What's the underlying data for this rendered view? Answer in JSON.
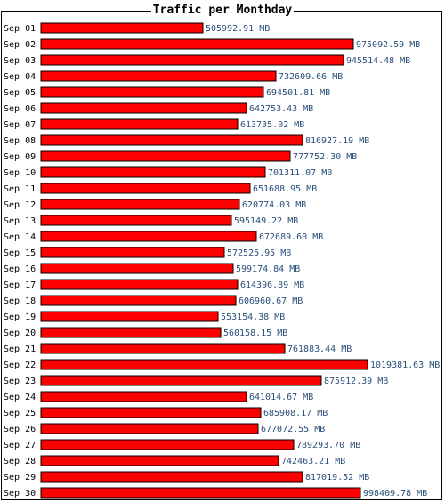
{
  "chart_data": {
    "type": "bar",
    "orientation": "horizontal",
    "title": "Traffic per Monthday",
    "unit": "MB",
    "bar_color": "#ff0000",
    "categories": [
      "Sep 01",
      "Sep 02",
      "Sep 03",
      "Sep 04",
      "Sep 05",
      "Sep 06",
      "Sep 07",
      "Sep 08",
      "Sep 09",
      "Sep 10",
      "Sep 11",
      "Sep 12",
      "Sep 13",
      "Sep 14",
      "Sep 15",
      "Sep 16",
      "Sep 17",
      "Sep 18",
      "Sep 19",
      "Sep 20",
      "Sep 21",
      "Sep 22",
      "Sep 23",
      "Sep 24",
      "Sep 25",
      "Sep 26",
      "Sep 27",
      "Sep 28",
      "Sep 29",
      "Sep 30"
    ],
    "values": [
      505992.91,
      975092.59,
      945514.48,
      732609.66,
      694501.81,
      642753.43,
      613735.02,
      816927.19,
      777752.3,
      701311.07,
      651688.95,
      620774.03,
      595149.22,
      672689.6,
      572525.95,
      599174.84,
      614396.89,
      606960.67,
      553154.38,
      560158.15,
      761883.44,
      1019381.63,
      875912.39,
      641014.67,
      685908.17,
      677072.55,
      789293.7,
      742463.21,
      817019.52,
      998409.78
    ],
    "value_labels": [
      "505992.91 MB",
      "975092.59 MB",
      "945514.48 MB",
      "732609.66 MB",
      "694501.81 MB",
      "642753.43 MB",
      "613735.02 MB",
      "816927.19 MB",
      "777752.30 MB",
      "701311.07 MB",
      "651688.95 MB",
      "620774.03 MB",
      "595149.22 MB",
      "672689.60 MB",
      "572525.95 MB",
      "599174.84 MB",
      "614396.89 MB",
      "606960.67 MB",
      "553154.38 MB",
      "560158.15 MB",
      "761883.44 MB",
      "1019381.63 MB",
      "875912.39 MB",
      "641014.67 MB",
      "685908.17 MB",
      "677072.55 MB",
      "789293.70 MB",
      "742463.21 MB",
      "817019.52 MB",
      "998409.78 MB"
    ],
    "xlim": [
      0,
      1019381.63
    ],
    "grid": false,
    "legend": "none"
  }
}
